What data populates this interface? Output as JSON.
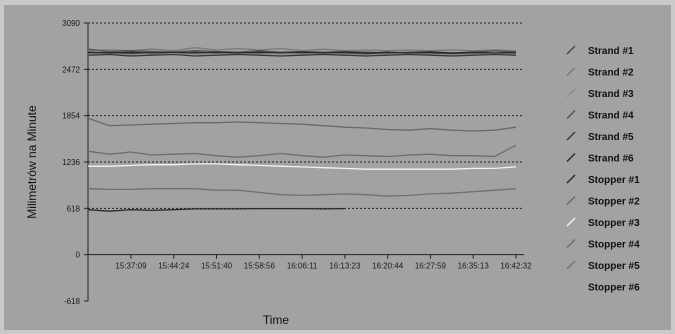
{
  "chart_data": {
    "type": "line",
    "title": "",
    "xlabel": "Time",
    "ylabel": "Milimetrów na Minute",
    "x_ticks": [
      "15:37:09",
      "15:44:24",
      "15:51:40",
      "15:58:56",
      "16:06:11",
      "16:13:23",
      "16:20:44",
      "16:27:59",
      "16:35:13",
      "16:42:32"
    ],
    "y_ticks": [
      3090,
      2472,
      1854,
      1236,
      618,
      0,
      -618
    ],
    "ylim": [
      -618,
      3090
    ],
    "grid": "horizontal dotted",
    "legend_position": "right",
    "x": [
      "15:33:40",
      "15:35:40",
      "15:37:09",
      "15:40:40",
      "15:44:24",
      "15:48:00",
      "15:51:40",
      "15:55:20",
      "15:58:56",
      "16:02:30",
      "16:06:11",
      "16:09:50",
      "16:13:23",
      "16:17:00",
      "16:20:44",
      "16:24:20",
      "16:27:59",
      "16:31:40",
      "16:35:13",
      "16:38:50",
      "16:42:32"
    ],
    "series": [
      {
        "name": "Strand #1",
        "color": "#4a4a4a",
        "values": [
          2690,
          2700,
          2680,
          2700,
          2690,
          2700,
          2690,
          2700,
          2690,
          2700,
          2690,
          2700,
          2690,
          2680,
          2690,
          2680,
          2690,
          2680,
          2690,
          2680,
          2690
        ]
      },
      {
        "name": "Strand #2",
        "color": "#7a7a7a",
        "values": [
          2720,
          2730,
          2720,
          2740,
          2720,
          2760,
          2730,
          2750,
          2730,
          2750,
          2720,
          2740,
          2720,
          2730,
          2720,
          2730,
          2720,
          2730,
          2720,
          2730,
          2720
        ]
      },
      {
        "name": "Strand #3",
        "color": "#8c8c8c",
        "values": [
          2670,
          2680,
          2660,
          2670,
          2680,
          2670,
          2660,
          2680,
          2670,
          2660,
          2670,
          2680,
          2670,
          2660,
          2670,
          2680,
          2670,
          2660,
          2670,
          2680,
          2670
        ]
      },
      {
        "name": "Strand #4",
        "color": "#555555",
        "values": [
          2740,
          2710,
          2720,
          2710,
          2700,
          2720,
          2710,
          2700,
          2720,
          2700,
          2710,
          2700,
          2710,
          2700,
          2690,
          2700,
          2710,
          2690,
          2700,
          2720,
          2700
        ]
      },
      {
        "name": "Strand #5",
        "color": "#3a3a3a",
        "values": [
          2660,
          2670,
          2650,
          2660,
          2670,
          2650,
          2660,
          2670,
          2660,
          2650,
          2660,
          2670,
          2660,
          2650,
          2660,
          2670,
          2660,
          2650,
          2660,
          2670,
          2660
        ]
      },
      {
        "name": "Strand #6",
        "color": "#2a2a2a",
        "values": [
          2700,
          2690,
          2700,
          2690,
          2700,
          2690,
          2700,
          2690,
          2700,
          2690,
          2700,
          2690,
          2700,
          2690,
          2700,
          2690,
          2700,
          2690,
          2700,
          2690,
          2700
        ]
      },
      {
        "name": "Stopper #1",
        "color": "#2a2a2a",
        "values": [
          600,
          580,
          600,
          590,
          600,
          610,
          610,
          610,
          615,
          615,
          615,
          610,
          615,
          null,
          null,
          null,
          null,
          null,
          null,
          null,
          null
        ]
      },
      {
        "name": "Stopper #2",
        "color": "#6a6a6a",
        "values": [
          1820,
          1720,
          1730,
          1740,
          1750,
          1760,
          1760,
          1770,
          1760,
          1750,
          1740,
          1720,
          1700,
          1690,
          1670,
          1660,
          1680,
          1660,
          1650,
          1660,
          1700
        ]
      },
      {
        "name": "Stopper #3",
        "color": "#f2f2f2",
        "values": [
          1180,
          1180,
          1190,
          1200,
          1200,
          1210,
          1210,
          1200,
          1190,
          1180,
          1170,
          1160,
          1150,
          1140,
          1140,
          1140,
          1140,
          1140,
          1150,
          1150,
          1170
        ]
      },
      {
        "name": "Stopper #4",
        "color": "#6e6e6e",
        "values": [
          1380,
          1340,
          1370,
          1330,
          1340,
          1350,
          1320,
          1300,
          1320,
          1350,
          1320,
          1300,
          1330,
          1320,
          1310,
          1330,
          1340,
          1320,
          1320,
          1310,
          1460
        ]
      },
      {
        "name": "Stopper #5",
        "color": "#707070",
        "values": [
          880,
          870,
          870,
          880,
          880,
          880,
          860,
          860,
          830,
          800,
          790,
          800,
          810,
          800,
          780,
          790,
          810,
          820,
          840,
          860,
          880
        ]
      },
      {
        "name": "Stopper #6",
        "color": "#9a9a9a",
        "values": [
          null,
          null,
          null,
          null,
          null,
          null,
          null,
          null,
          null,
          null,
          null,
          null,
          null,
          null,
          null,
          null,
          null,
          null,
          null,
          null,
          null
        ]
      }
    ]
  }
}
